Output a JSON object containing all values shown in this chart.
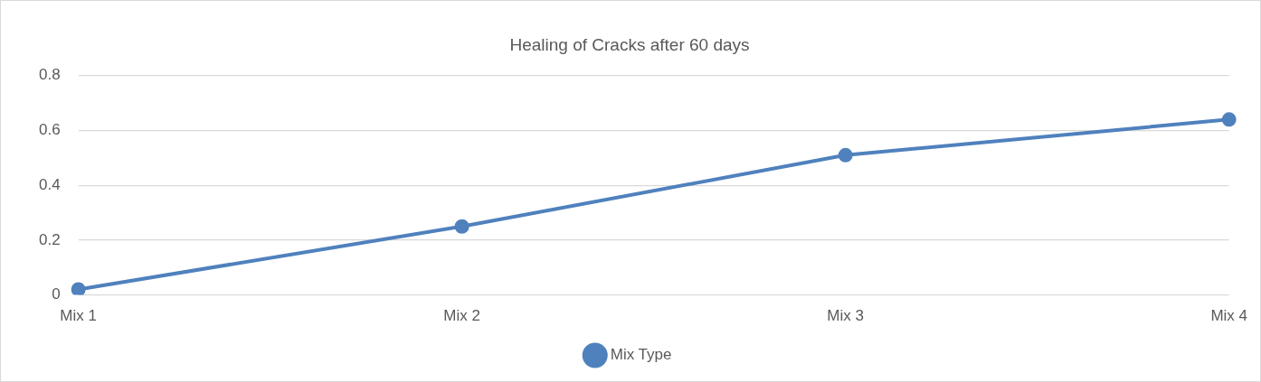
{
  "chart_data": {
    "type": "line",
    "title": "Healing of Cracks after 60 days",
    "categories": [
      "Mix 1",
      "Mix 2",
      "Mix 3",
      "Mix 4"
    ],
    "series": [
      {
        "name": "Mix Type",
        "color": "#4f81bd",
        "values": [
          0.02,
          0.25,
          0.51,
          0.64
        ]
      }
    ],
    "ylim": [
      0,
      0.8
    ],
    "yticks": [
      0,
      0.2,
      0.4,
      0.6,
      0.8
    ],
    "grid": "y",
    "legend": "bottom",
    "marker": "circle",
    "line_style": "solid"
  }
}
